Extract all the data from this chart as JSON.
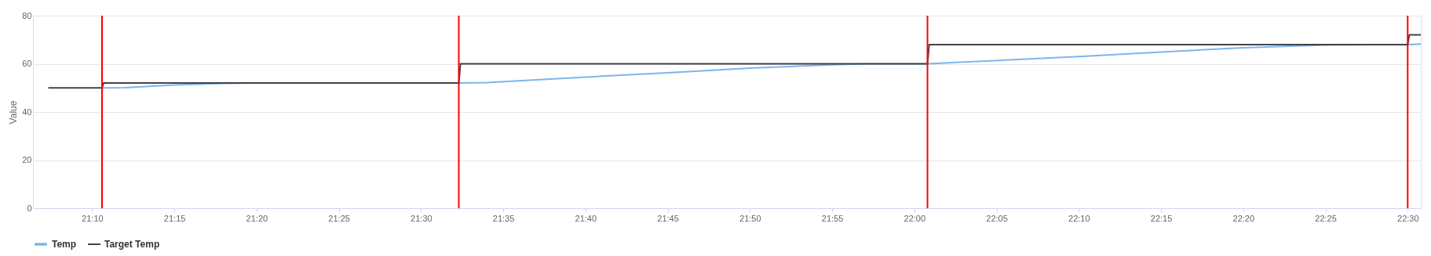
{
  "chart_data": {
    "type": "line",
    "ylabel": "Value",
    "x": [
      21.1222,
      21.1767,
      21.1783,
      21.5383,
      21.54,
      22.0133,
      22.015,
      22.5,
      22.5017,
      22.5133
    ],
    "series": [
      {
        "name": "Temp",
        "color": "#7cb5ec",
        "x": [
          21.1767,
          21.2,
          21.25,
          21.3,
          21.3333,
          21.5383,
          21.5667,
          21.6667,
          21.75,
          21.8333,
          21.9167,
          21.95,
          22.0133,
          22.05,
          22.1667,
          22.25,
          22.3333,
          22.4167,
          22.4667,
          22.5,
          22.5133
        ],
        "values": [
          50,
          50.1,
          51.2,
          51.9,
          52,
          52,
          52.2,
          54.5,
          56.3,
          58.2,
          59.6,
          60,
          60,
          60.7,
          63,
          64.9,
          66.7,
          67.8,
          68,
          68,
          68.2
        ]
      },
      {
        "name": "Target Temp",
        "color": "#434348",
        "values": [
          50,
          50,
          52,
          52,
          60,
          60,
          68,
          68,
          72,
          72
        ]
      }
    ],
    "xlim": [
      21.1067,
      22.5133
    ],
    "xticks": [
      {
        "value": 21.16667,
        "label": "21:10"
      },
      {
        "value": 21.25,
        "label": "21:15"
      },
      {
        "value": 21.33333,
        "label": "21:20"
      },
      {
        "value": 21.41667,
        "label": "21:25"
      },
      {
        "value": 21.5,
        "label": "21:30"
      },
      {
        "value": 21.58333,
        "label": "21:35"
      },
      {
        "value": 21.66667,
        "label": "21:40"
      },
      {
        "value": 21.75,
        "label": "21:45"
      },
      {
        "value": 21.83333,
        "label": "21:50"
      },
      {
        "value": 21.91667,
        "label": "21:55"
      },
      {
        "value": 22.0,
        "label": "22:00"
      },
      {
        "value": 22.08333,
        "label": "22:05"
      },
      {
        "value": 22.16667,
        "label": "22:10"
      },
      {
        "value": 22.25,
        "label": "22:15"
      },
      {
        "value": 22.33333,
        "label": "22:20"
      },
      {
        "value": 22.41667,
        "label": "22:25"
      },
      {
        "value": 22.5,
        "label": "22:30"
      }
    ],
    "ylim": [
      0,
      80
    ],
    "yticks": [
      0,
      20,
      40,
      60,
      80
    ],
    "ref_lines": [
      {
        "axis": "x",
        "value": 21.1767,
        "color": "#ff0000"
      },
      {
        "axis": "x",
        "value": 21.5383,
        "color": "#ff0000"
      },
      {
        "axis": "x",
        "value": 22.0133,
        "color": "#ff0000"
      },
      {
        "axis": "x",
        "value": 22.5,
        "color": "#ff0000"
      }
    ],
    "grid": "y",
    "legend": "bottom",
    "marker": "none",
    "line_style": "solid"
  }
}
